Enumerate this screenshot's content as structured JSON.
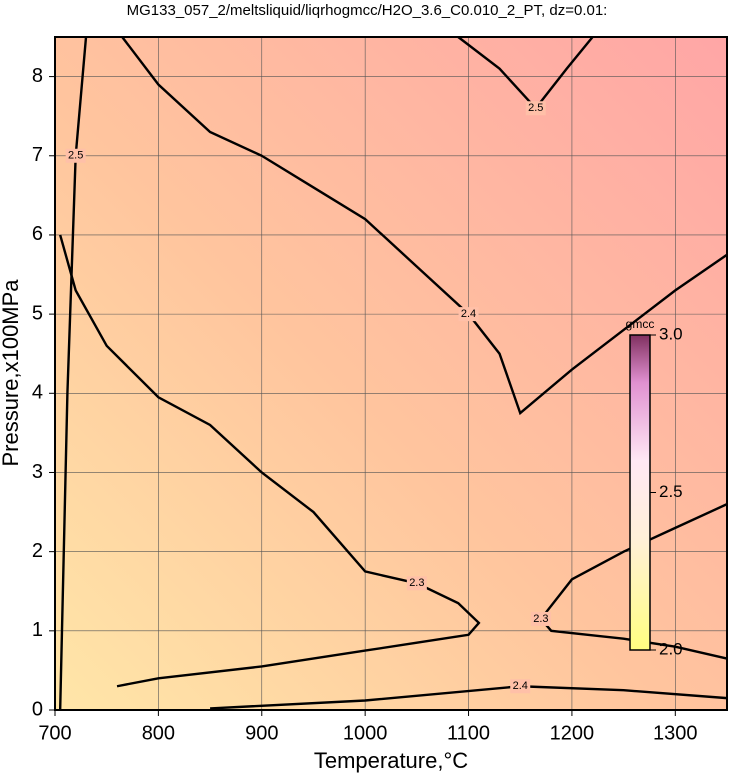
{
  "chart_data": {
    "type": "contour",
    "title": "MG133_057_2/meltsliquid/liqrhogmcc/H2O_3.6_C0.010_2_PT, dz=0.01:",
    "xlabel": "Temperature,°C",
    "ylabel": "Pressure,x100MPa",
    "xlim": [
      700,
      1350
    ],
    "ylim": [
      0,
      8.5
    ],
    "xticks": [
      700,
      800,
      900,
      1000,
      1100,
      1200,
      1300
    ],
    "yticks": [
      0,
      1,
      2,
      3,
      4,
      5,
      6,
      7,
      8
    ],
    "grid": true,
    "contours": [
      {
        "level": 2.4,
        "x": [
          765,
          800,
          850,
          900,
          950,
          1000,
          1050,
          1100,
          1130,
          1150,
          1200,
          1250,
          1300,
          1350
        ],
        "y": [
          8.5,
          7.9,
          7.3,
          7.0,
          6.6,
          6.2,
          5.6,
          5.0,
          4.5,
          3.75,
          4.3,
          4.8,
          5.3,
          5.75
        ]
      },
      {
        "level": 2.3,
        "x": [
          705,
          720,
          750,
          800,
          850,
          900,
          950,
          1000,
          1050,
          1090,
          1110,
          1100,
          1050,
          1000,
          900,
          800,
          760
        ],
        "y": [
          6.0,
          5.3,
          4.6,
          3.95,
          3.6,
          3.0,
          2.5,
          1.75,
          1.6,
          1.35,
          1.1,
          0.95,
          0.85,
          0.75,
          0.55,
          0.4,
          0.3
        ]
      },
      {
        "level": 2.3,
        "x": [
          1350,
          1300,
          1250,
          1200,
          1170,
          1180,
          1250,
          1300,
          1350
        ],
        "y": [
          2.6,
          2.3,
          2.0,
          1.65,
          1.15,
          1.0,
          0.9,
          0.8,
          0.65
        ]
      },
      {
        "level": 2.5,
        "x": [
          1090,
          1130,
          1165,
          1195,
          1220
        ],
        "y": [
          8.5,
          8.1,
          7.6,
          8.1,
          8.5
        ]
      },
      {
        "level": 2.4,
        "x": [
          850,
          1000,
          1150,
          1250,
          1350
        ],
        "y": [
          0.02,
          0.12,
          0.3,
          0.25,
          0.15
        ]
      },
      {
        "level": 2.5,
        "x": [
          705,
          712,
          720,
          730
        ],
        "y": [
          0,
          4,
          7,
          8.5
        ]
      }
    ],
    "colorbar": {
      "label": "gmcc",
      "lim": [
        2.0,
        3.0
      ],
      "ticks": [
        {
          "value": 2.0,
          "label": "2.0"
        },
        2.5,
        {
          "value": 3.0,
          "label": "3.0"
        }
      ]
    }
  }
}
